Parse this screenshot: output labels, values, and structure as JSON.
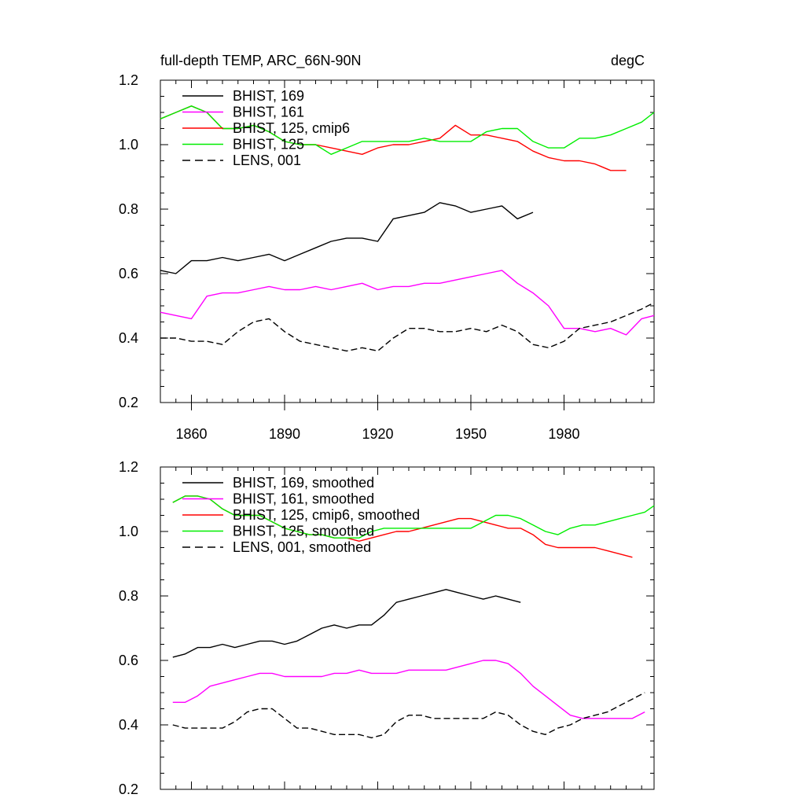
{
  "chart_data": [
    {
      "type": "line",
      "title_left": "full-depth TEMP, ARC_66N-90N",
      "title_right": "degC",
      "xlim": [
        1850,
        2009
      ],
      "ylim": [
        0.2,
        1.2
      ],
      "yticks": [
        "0.2",
        "0.4",
        "0.6",
        "0.8",
        "1.0",
        "1.2"
      ],
      "xticks": [
        "1860",
        "1890",
        "1920",
        "1950",
        "1980"
      ],
      "legend_position": "top-left",
      "series": [
        {
          "name": "BHIST, 169",
          "color": "#000000",
          "dash": "solid",
          "x": [
            1850,
            1855,
            1860,
            1865,
            1870,
            1875,
            1880,
            1885,
            1890,
            1895,
            1900,
            1905,
            1910,
            1915,
            1920,
            1925,
            1930,
            1935,
            1940,
            1945,
            1950,
            1955,
            1960,
            1965,
            1970
          ],
          "y": [
            0.61,
            0.6,
            0.64,
            0.64,
            0.65,
            0.64,
            0.65,
            0.66,
            0.64,
            0.66,
            0.68,
            0.7,
            0.71,
            0.71,
            0.7,
            0.77,
            0.78,
            0.79,
            0.82,
            0.81,
            0.79,
            0.8,
            0.81,
            0.77,
            0.79
          ]
        },
        {
          "name": "BHIST, 161",
          "color": "#ff00ff",
          "dash": "solid",
          "x": [
            1850,
            1855,
            1860,
            1865,
            1870,
            1875,
            1880,
            1885,
            1890,
            1895,
            1900,
            1905,
            1910,
            1915,
            1920,
            1925,
            1930,
            1935,
            1940,
            1945,
            1950,
            1955,
            1960,
            1965,
            1970,
            1975,
            1980,
            1985,
            1990,
            1995,
            2000,
            2005,
            2009
          ],
          "y": [
            0.48,
            0.47,
            0.46,
            0.53,
            0.54,
            0.54,
            0.55,
            0.56,
            0.55,
            0.55,
            0.56,
            0.55,
            0.56,
            0.57,
            0.55,
            0.56,
            0.56,
            0.57,
            0.57,
            0.58,
            0.59,
            0.6,
            0.61,
            0.57,
            0.54,
            0.5,
            0.43,
            0.43,
            0.42,
            0.43,
            0.41,
            0.46,
            0.47
          ]
        },
        {
          "name": "BHIST, 125, cmip6",
          "color": "#ff0000",
          "dash": "solid",
          "x": [
            1850,
            1855,
            1860,
            1865,
            1870,
            1875,
            1880,
            1885,
            1890,
            1895,
            1900,
            1905,
            1910,
            1915,
            1920,
            1925,
            1930,
            1935,
            1940,
            1945,
            1950,
            1955,
            1960,
            1965,
            1970,
            1975,
            1980,
            1985,
            1990,
            1995,
            2000
          ],
          "y": [
            1.08,
            1.1,
            1.12,
            1.1,
            1.05,
            1.05,
            1.06,
            1.04,
            1.01,
            1.0,
            1.0,
            0.99,
            0.98,
            0.97,
            0.99,
            1.0,
            1.0,
            1.01,
            1.02,
            1.06,
            1.03,
            1.03,
            1.02,
            1.01,
            0.98,
            0.96,
            0.95,
            0.95,
            0.94,
            0.92,
            0.92
          ]
        },
        {
          "name": "BHIST, 125",
          "color": "#00ee00",
          "dash": "solid",
          "x": [
            1850,
            1855,
            1860,
            1865,
            1870,
            1875,
            1880,
            1885,
            1890,
            1895,
            1900,
            1905,
            1910,
            1915,
            1920,
            1925,
            1930,
            1935,
            1940,
            1945,
            1950,
            1955,
            1960,
            1965,
            1970,
            1975,
            1980,
            1985,
            1990,
            1995,
            2000,
            2005,
            2009
          ],
          "y": [
            1.08,
            1.1,
            1.12,
            1.1,
            1.05,
            1.05,
            1.06,
            1.04,
            1.01,
            1.0,
            1.0,
            0.97,
            0.99,
            1.01,
            1.01,
            1.01,
            1.01,
            1.02,
            1.01,
            1.01,
            1.01,
            1.04,
            1.05,
            1.05,
            1.01,
            0.99,
            0.99,
            1.02,
            1.02,
            1.03,
            1.05,
            1.07,
            1.1
          ]
        },
        {
          "name": "LENS, 001",
          "color": "#000000",
          "dash": "dashed",
          "x": [
            1850,
            1855,
            1860,
            1865,
            1870,
            1875,
            1880,
            1885,
            1890,
            1895,
            1900,
            1905,
            1910,
            1915,
            1920,
            1925,
            1930,
            1935,
            1940,
            1945,
            1950,
            1955,
            1960,
            1965,
            1970,
            1975,
            1980,
            1985,
            1990,
            1995,
            2000,
            2005,
            2009
          ],
          "y": [
            0.4,
            0.4,
            0.39,
            0.39,
            0.38,
            0.42,
            0.45,
            0.46,
            0.42,
            0.39,
            0.38,
            0.37,
            0.36,
            0.37,
            0.36,
            0.4,
            0.43,
            0.43,
            0.42,
            0.42,
            0.43,
            0.42,
            0.44,
            0.42,
            0.38,
            0.37,
            0.39,
            0.43,
            0.44,
            0.45,
            0.47,
            0.49,
            0.51
          ]
        }
      ]
    },
    {
      "type": "line",
      "xlim": [
        1850,
        2009
      ],
      "ylim": [
        0.2,
        1.2
      ],
      "yticks": [
        "0.2",
        "0.4",
        "0.6",
        "0.8",
        "1.0",
        "1.2"
      ],
      "legend_position": "top-left",
      "series": [
        {
          "name": "BHIST, 169, smoothed",
          "color": "#000000",
          "dash": "solid",
          "x": [
            1854,
            1858,
            1862,
            1866,
            1870,
            1874,
            1878,
            1882,
            1886,
            1890,
            1894,
            1898,
            1902,
            1906,
            1910,
            1914,
            1918,
            1922,
            1926,
            1930,
            1934,
            1938,
            1942,
            1946,
            1950,
            1954,
            1958,
            1962,
            1966
          ],
          "y": [
            0.61,
            0.62,
            0.64,
            0.64,
            0.65,
            0.64,
            0.65,
            0.66,
            0.66,
            0.65,
            0.66,
            0.68,
            0.7,
            0.71,
            0.7,
            0.71,
            0.71,
            0.74,
            0.78,
            0.79,
            0.8,
            0.81,
            0.82,
            0.81,
            0.8,
            0.79,
            0.8,
            0.79,
            0.78
          ]
        },
        {
          "name": "BHIST, 161, smoothed",
          "color": "#ff00ff",
          "dash": "solid",
          "x": [
            1854,
            1858,
            1862,
            1866,
            1870,
            1874,
            1878,
            1882,
            1886,
            1890,
            1894,
            1898,
            1902,
            1906,
            1910,
            1914,
            1918,
            1922,
            1926,
            1930,
            1934,
            1938,
            1942,
            1946,
            1950,
            1954,
            1958,
            1962,
            1966,
            1970,
            1974,
            1978,
            1982,
            1986,
            1990,
            1994,
            1998,
            2002,
            2006
          ],
          "y": [
            0.47,
            0.47,
            0.49,
            0.52,
            0.53,
            0.54,
            0.55,
            0.56,
            0.56,
            0.55,
            0.55,
            0.55,
            0.55,
            0.56,
            0.56,
            0.57,
            0.56,
            0.56,
            0.56,
            0.57,
            0.57,
            0.57,
            0.57,
            0.58,
            0.59,
            0.6,
            0.6,
            0.59,
            0.56,
            0.52,
            0.49,
            0.46,
            0.43,
            0.42,
            0.42,
            0.42,
            0.42,
            0.42,
            0.44
          ]
        },
        {
          "name": "BHIST, 125, cmip6, smoothed",
          "color": "#ff0000",
          "dash": "solid",
          "x": [
            1854,
            1858,
            1862,
            1866,
            1870,
            1874,
            1878,
            1882,
            1886,
            1890,
            1894,
            1898,
            1902,
            1906,
            1910,
            1914,
            1918,
            1922,
            1926,
            1930,
            1934,
            1938,
            1942,
            1946,
            1950,
            1954,
            1958,
            1962,
            1966,
            1970,
            1974,
            1978,
            1982,
            1986,
            1990,
            1994,
            1998,
            2002
          ],
          "y": [
            1.09,
            1.11,
            1.11,
            1.1,
            1.07,
            1.05,
            1.05,
            1.05,
            1.03,
            1.01,
            1.0,
            0.99,
            0.99,
            0.98,
            0.98,
            0.97,
            0.98,
            0.99,
            1.0,
            1.0,
            1.01,
            1.02,
            1.03,
            1.04,
            1.04,
            1.03,
            1.02,
            1.01,
            1.01,
            0.99,
            0.96,
            0.95,
            0.95,
            0.95,
            0.95,
            0.94,
            0.93,
            0.92
          ]
        },
        {
          "name": "BHIST, 125, smoothed",
          "color": "#00ee00",
          "dash": "solid",
          "x": [
            1854,
            1858,
            1862,
            1866,
            1870,
            1874,
            1878,
            1882,
            1886,
            1890,
            1894,
            1898,
            1902,
            1906,
            1910,
            1914,
            1918,
            1922,
            1926,
            1930,
            1934,
            1938,
            1942,
            1946,
            1950,
            1954,
            1958,
            1962,
            1966,
            1970,
            1974,
            1978,
            1982,
            1986,
            1990,
            1994,
            1998,
            2002,
            2006,
            2009
          ],
          "y": [
            1.09,
            1.11,
            1.11,
            1.1,
            1.07,
            1.05,
            1.05,
            1.05,
            1.03,
            1.01,
            1.0,
            0.99,
            0.99,
            0.98,
            0.98,
            0.98,
            1.0,
            1.01,
            1.01,
            1.01,
            1.01,
            1.01,
            1.01,
            1.01,
            1.01,
            1.03,
            1.05,
            1.05,
            1.04,
            1.02,
            1.0,
            0.99,
            1.01,
            1.02,
            1.02,
            1.03,
            1.04,
            1.05,
            1.06,
            1.08
          ]
        },
        {
          "name": "LENS, 001, smoothed",
          "color": "#000000",
          "dash": "dashed",
          "x": [
            1854,
            1858,
            1862,
            1866,
            1870,
            1874,
            1878,
            1882,
            1886,
            1890,
            1894,
            1898,
            1902,
            1906,
            1910,
            1914,
            1918,
            1922,
            1926,
            1930,
            1934,
            1938,
            1942,
            1946,
            1950,
            1954,
            1958,
            1962,
            1966,
            1970,
            1974,
            1978,
            1982,
            1986,
            1990,
            1994,
            1998,
            2002,
            2006
          ],
          "y": [
            0.4,
            0.39,
            0.39,
            0.39,
            0.39,
            0.41,
            0.44,
            0.45,
            0.45,
            0.42,
            0.39,
            0.39,
            0.38,
            0.37,
            0.37,
            0.37,
            0.36,
            0.37,
            0.41,
            0.43,
            0.43,
            0.42,
            0.42,
            0.42,
            0.42,
            0.42,
            0.44,
            0.43,
            0.4,
            0.38,
            0.37,
            0.39,
            0.4,
            0.42,
            0.43,
            0.44,
            0.46,
            0.48,
            0.5
          ]
        }
      ]
    }
  ]
}
